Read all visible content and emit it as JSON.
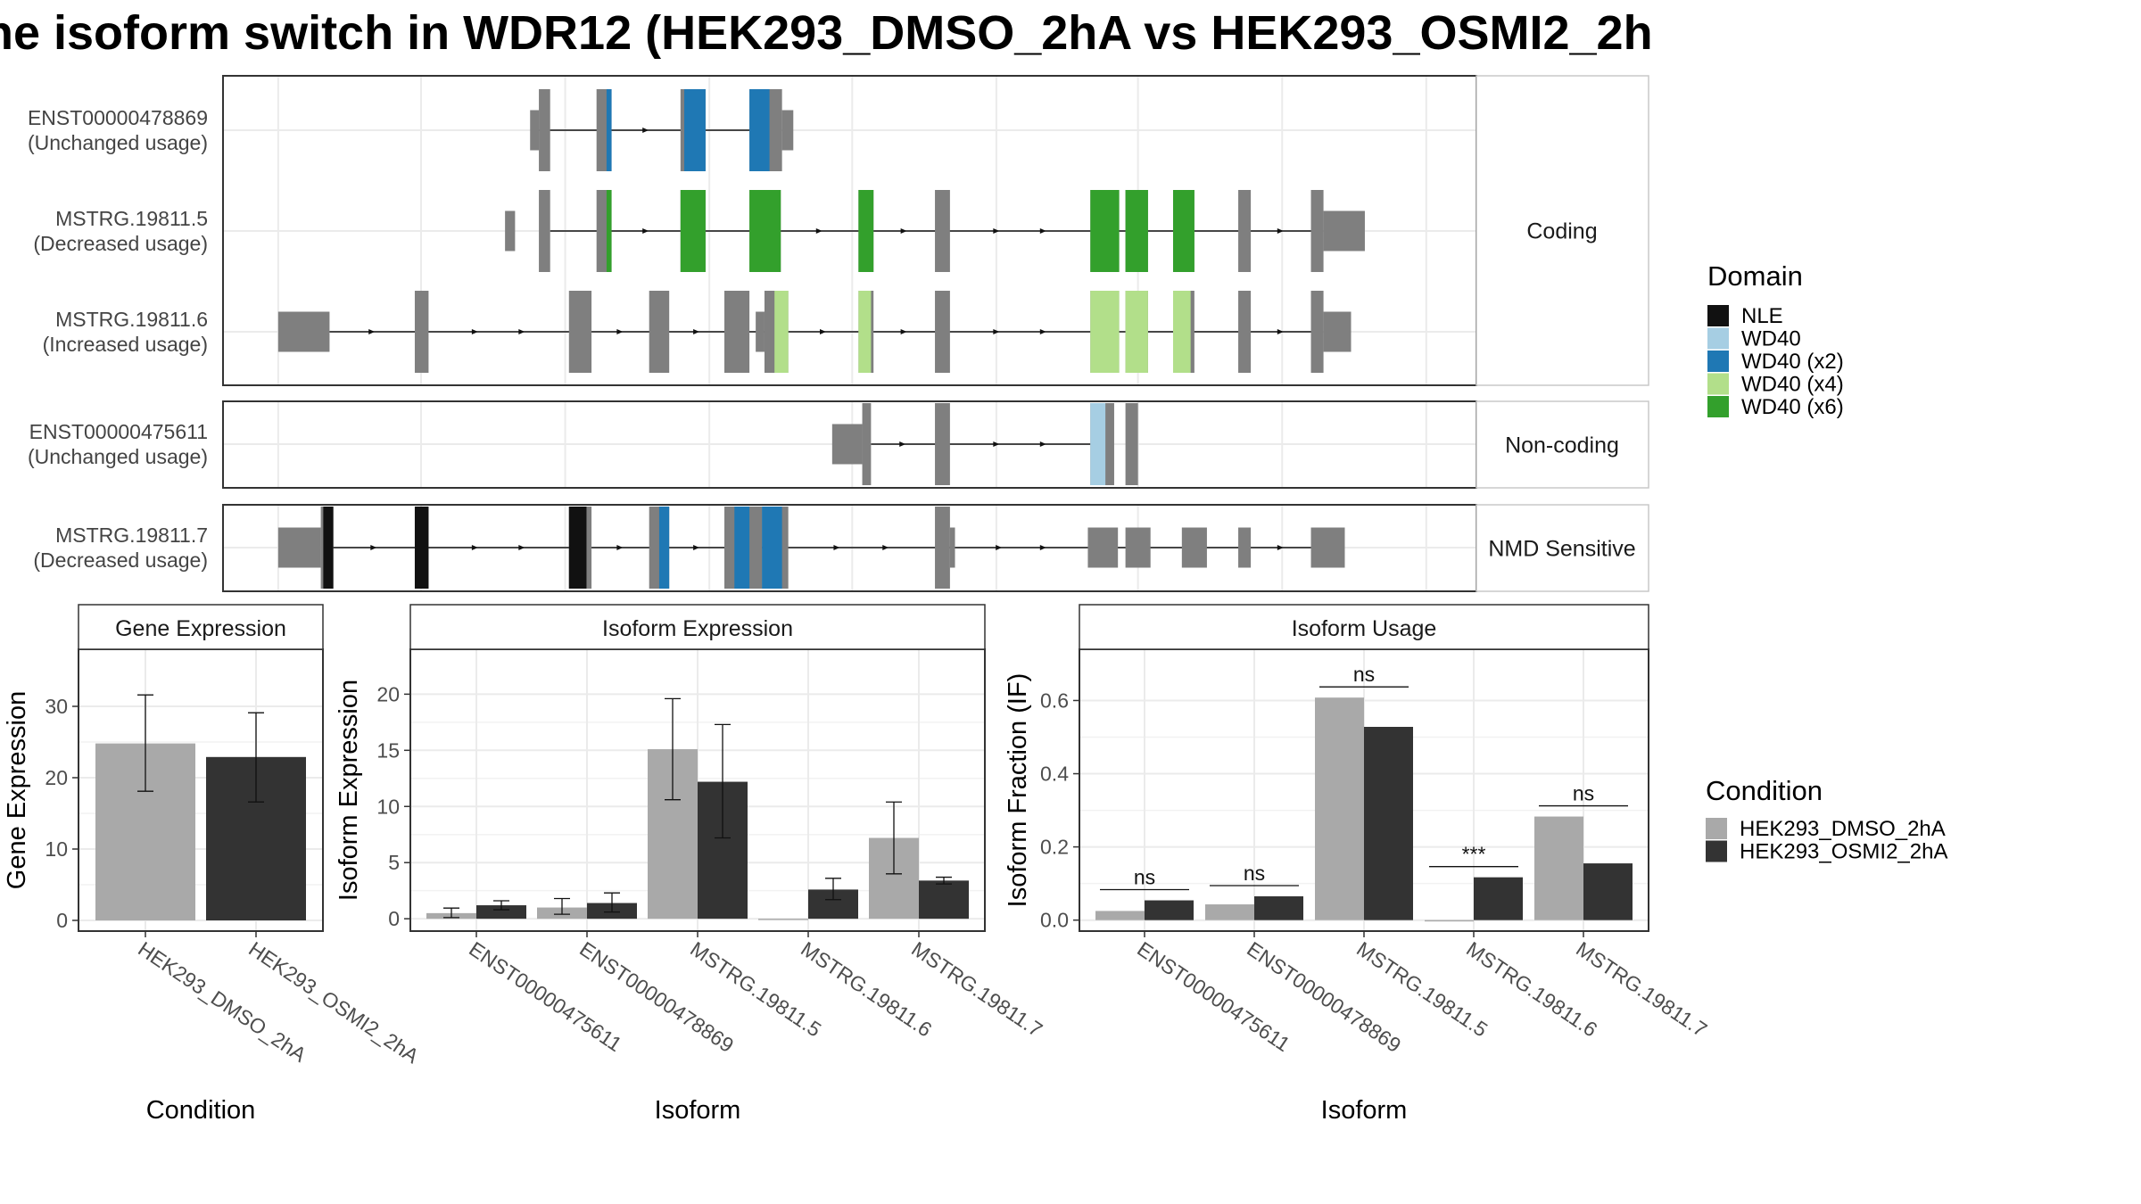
{
  "title": "ne isoform switch in WDR12 (HEK293_DMSO_2hA vs HEK293_OSMI2_2h",
  "colors": {
    "exon": "#7F7F7F",
    "NLE": "#111111",
    "WD40": "#A6CEE3",
    "WD40 (x2)": "#1F78B4",
    "WD40 (x4)": "#B2DF8A",
    "WD40 (x6)": "#33A02C",
    "cond1": "#A9A9A9",
    "cond2": "#333333"
  },
  "legends": {
    "domain": {
      "title": "Domain",
      "items": [
        "NLE",
        "WD40",
        "WD40 (x2)",
        "WD40 (x4)",
        "WD40 (x6)"
      ]
    },
    "condition": {
      "title": "Condition",
      "items": [
        "HEK293_DMSO_2hA",
        "HEK293_OSMI2_2hA"
      ]
    }
  },
  "structure": {
    "facets": [
      {
        "label": "Coding",
        "isoforms": [
          {
            "id": "ENST00000478869",
            "usage": "(Unchanged usage)",
            "exons": [
              [
                0.245,
                0.252,
                "s"
              ],
              [
                0.252,
                0.261,
                "l"
              ],
              [
                0.298,
                0.31,
                "l"
              ],
              [
                0.365,
                0.385,
                "l"
              ],
              [
                0.42,
                0.446,
                "l"
              ],
              [
                0.446,
                0.455,
                "s"
              ]
            ],
            "domains": [
              [
                0.306,
                0.31,
                "WD40 (x2)"
              ],
              [
                0.368,
                0.385,
                "WD40 (x2)"
              ],
              [
                0.42,
                0.436,
                "WD40 (x2)"
              ]
            ],
            "intron": [
              0.252,
              0.446
            ]
          },
          {
            "id": "MSTRG.19811.5",
            "usage": "(Decreased usage)",
            "exons": [
              [
                0.225,
                0.233,
                "s"
              ],
              [
                0.252,
                0.261,
                "l"
              ],
              [
                0.298,
                0.31,
                "l"
              ],
              [
                0.365,
                0.385,
                "l"
              ],
              [
                0.42,
                0.445,
                "l"
              ],
              [
                0.507,
                0.519,
                "l"
              ],
              [
                0.568,
                0.58,
                "l"
              ],
              [
                0.692,
                0.715,
                "l"
              ],
              [
                0.72,
                0.738,
                "l"
              ],
              [
                0.758,
                0.775,
                "l"
              ],
              [
                0.81,
                0.82,
                "l"
              ],
              [
                0.868,
                0.878,
                "l"
              ],
              [
                0.878,
                0.911,
                "s"
              ]
            ],
            "domains": [
              [
                0.306,
                0.31,
                "WD40 (x6)"
              ],
              [
                0.365,
                0.385,
                "WD40 (x6)"
              ],
              [
                0.42,
                0.445,
                "WD40 (x6)"
              ],
              [
                0.507,
                0.519,
                "WD40 (x6)"
              ],
              [
                0.692,
                0.715,
                "WD40 (x6)"
              ],
              [
                0.72,
                0.738,
                "WD40 (x6)"
              ],
              [
                0.758,
                0.775,
                "WD40 (x6)"
              ]
            ],
            "intron": [
              0.261,
              0.878
            ]
          },
          {
            "id": "MSTRG.19811.6",
            "usage": "(Increased usage)",
            "exons": [
              [
                0.044,
                0.085,
                "s"
              ],
              [
                0.153,
                0.164,
                "l"
              ],
              [
                0.276,
                0.294,
                "l"
              ],
              [
                0.34,
                0.356,
                "l"
              ],
              [
                0.4,
                0.42,
                "l"
              ],
              [
                0.425,
                0.432,
                "s"
              ],
              [
                0.432,
                0.451,
                "l"
              ],
              [
                0.507,
                0.519,
                "l"
              ],
              [
                0.568,
                0.58,
                "l"
              ],
              [
                0.692,
                0.715,
                "l"
              ],
              [
                0.72,
                0.738,
                "l"
              ],
              [
                0.758,
                0.775,
                "l"
              ],
              [
                0.81,
                0.82,
                "l"
              ],
              [
                0.868,
                0.878,
                "l"
              ],
              [
                0.878,
                0.9,
                "s"
              ]
            ],
            "domains": [
              [
                0.44,
                0.451,
                "WD40 (x4)"
              ],
              [
                0.507,
                0.517,
                "WD40 (x4)"
              ],
              [
                0.692,
                0.715,
                "WD40 (x4)"
              ],
              [
                0.72,
                0.738,
                "WD40 (x4)"
              ],
              [
                0.758,
                0.772,
                "WD40 (x4)"
              ]
            ],
            "intron": [
              0.085,
              0.878
            ]
          }
        ]
      },
      {
        "label": "Non-coding",
        "isoforms": [
          {
            "id": "ENST00000475611",
            "usage": "(Unchanged usage)",
            "exons": [
              [
                0.486,
                0.51,
                "s"
              ],
              [
                0.51,
                0.517,
                "l"
              ],
              [
                0.568,
                0.58,
                "l"
              ],
              [
                0.692,
                0.711,
                "l"
              ],
              [
                0.72,
                0.73,
                "l"
              ]
            ],
            "domains": [
              [
                0.692,
                0.704,
                "WD40"
              ]
            ],
            "intron": [
              0.517,
              0.692
            ]
          }
        ]
      },
      {
        "label": "NMD Sensitive",
        "isoforms": [
          {
            "id": "MSTRG.19811.7",
            "usage": "(Decreased usage)",
            "exons": [
              [
                0.044,
                0.078,
                "s"
              ],
              [
                0.078,
                0.088,
                "l"
              ],
              [
                0.153,
                0.164,
                "l"
              ],
              [
                0.276,
                0.294,
                "l"
              ],
              [
                0.34,
                0.356,
                "l"
              ],
              [
                0.4,
                0.43,
                "l"
              ],
              [
                0.43,
                0.451,
                "l"
              ],
              [
                0.568,
                0.58,
                "l"
              ],
              [
                0.58,
                0.584,
                "s"
              ],
              [
                0.69,
                0.714,
                "s"
              ],
              [
                0.72,
                0.74,
                "s"
              ],
              [
                0.765,
                0.785,
                "s"
              ],
              [
                0.81,
                0.82,
                "s"
              ],
              [
                0.868,
                0.895,
                "s"
              ]
            ],
            "domains": [
              [
                0.08,
                0.088,
                "NLE"
              ],
              [
                0.153,
                0.164,
                "NLE"
              ],
              [
                0.276,
                0.29,
                "NLE"
              ],
              [
                0.348,
                0.356,
                "WD40 (x2)"
              ],
              [
                0.408,
                0.42,
                "WD40 (x2)"
              ],
              [
                0.43,
                0.446,
                "WD40 (x2)"
              ]
            ],
            "intron": [
              0.088,
              0.868
            ]
          }
        ]
      }
    ]
  },
  "chart_data": [
    {
      "type": "bar",
      "title": "Gene Expression",
      "xlabel": "Condition",
      "ylabel": "Gene Expression",
      "categories": [
        "HEK293_DMSO_2hA",
        "HEK293_OSMI2_2hA"
      ],
      "values": [
        24.8,
        22.9
      ],
      "error_low": [
        18.1,
        16.6
      ],
      "error_high": [
        31.6,
        29.1
      ],
      "ylim": [
        -1.5,
        38
      ],
      "yticks": [
        0,
        10,
        20,
        30
      ]
    },
    {
      "type": "bar",
      "title": "Isoform Expression",
      "xlabel": "Isoform",
      "ylabel": "Isoform Expression",
      "categories": [
        "ENST00000475611",
        "ENST00000478869",
        "MSTRG.19811.5",
        "MSTRG.19811.6",
        "MSTRG.19811.7"
      ],
      "series": [
        {
          "name": "HEK293_DMSO_2hA",
          "values": [
            0.5,
            1.0,
            15.1,
            0.0,
            7.2
          ],
          "error_low": [
            0.1,
            0.4,
            10.6,
            0.0,
            4.0
          ],
          "error_high": [
            0.95,
            1.8,
            19.6,
            0.0,
            10.4
          ]
        },
        {
          "name": "HEK293_OSMI2_2hA",
          "values": [
            1.2,
            1.4,
            12.2,
            2.6,
            3.4
          ],
          "error_low": [
            0.8,
            0.6,
            7.2,
            1.7,
            3.1
          ],
          "error_high": [
            1.6,
            2.3,
            17.3,
            3.6,
            3.7
          ]
        }
      ],
      "ylim": [
        -1.1,
        24
      ],
      "yticks": [
        0,
        5,
        10,
        15,
        20
      ]
    },
    {
      "type": "bar",
      "title": "Isoform Usage",
      "xlabel": "Isoform",
      "ylabel": "Isoform Fraction (IF)",
      "categories": [
        "ENST00000475611",
        "ENST00000478869",
        "MSTRG.19811.5",
        "MSTRG.19811.6",
        "MSTRG.19811.7"
      ],
      "series": [
        {
          "name": "HEK293_DMSO_2hA",
          "values": [
            0.025,
            0.043,
            0.608,
            0.0,
            0.283
          ]
        },
        {
          "name": "HEK293_OSMI2_2hA",
          "values": [
            0.054,
            0.065,
            0.528,
            0.117,
            0.155
          ]
        }
      ],
      "significance": [
        "ns",
        "ns",
        "ns",
        "***",
        "ns"
      ],
      "ylim": [
        -0.03,
        0.74
      ],
      "yticks": [
        "0.0",
        "0.2",
        "0.4",
        "0.6"
      ]
    }
  ]
}
